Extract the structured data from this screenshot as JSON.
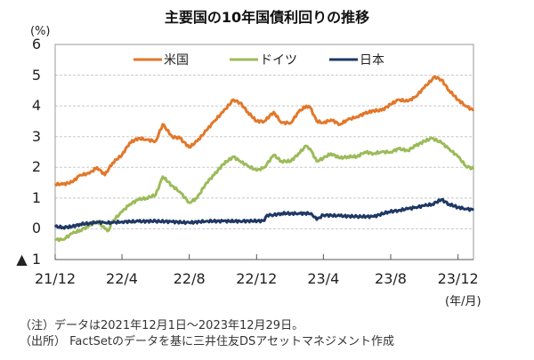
{
  "chart_data": {
    "type": "line",
    "title": "主要国の10年国債利回りの推移",
    "ylabel": "(%)",
    "xlabel": "(年/月)",
    "ylim": [
      -1,
      6
    ],
    "yticks": [
      6,
      5,
      4,
      3,
      2,
      1,
      0,
      -1
    ],
    "ytick_labels": [
      "6",
      "5",
      "4",
      "3",
      "2",
      "1",
      "0",
      "▲ 1"
    ],
    "xlim": [
      "2021-12-01",
      "2023-12-29"
    ],
    "xticks": [
      "2021-12-01",
      "2022-04-01",
      "2022-08-01",
      "2022-12-01",
      "2023-04-01",
      "2023-08-01",
      "2023-12-01"
    ],
    "xtick_labels": [
      "21/12",
      "22/4",
      "22/8",
      "22/12",
      "23/4",
      "23/8",
      "23/12"
    ],
    "grid": true,
    "legend_position": "top-center",
    "series": [
      {
        "name": "米国",
        "color": "#E2772A",
        "points": [
          [
            "2021-12-01",
            1.45
          ],
          [
            "2021-12-15",
            1.45
          ],
          [
            "2022-01-01",
            1.52
          ],
          [
            "2022-01-15",
            1.75
          ],
          [
            "2022-02-01",
            1.8
          ],
          [
            "2022-02-15",
            2.0
          ],
          [
            "2022-03-01",
            1.75
          ],
          [
            "2022-03-15",
            2.15
          ],
          [
            "2022-04-01",
            2.4
          ],
          [
            "2022-04-15",
            2.8
          ],
          [
            "2022-05-01",
            2.95
          ],
          [
            "2022-05-15",
            2.9
          ],
          [
            "2022-06-01",
            2.85
          ],
          [
            "2022-06-14",
            3.4
          ],
          [
            "2022-07-01",
            3.0
          ],
          [
            "2022-07-15",
            2.95
          ],
          [
            "2022-08-01",
            2.65
          ],
          [
            "2022-08-15",
            2.85
          ],
          [
            "2022-09-01",
            3.2
          ],
          [
            "2022-09-15",
            3.5
          ],
          [
            "2022-10-01",
            3.8
          ],
          [
            "2022-10-20",
            4.2
          ],
          [
            "2022-11-01",
            4.1
          ],
          [
            "2022-11-15",
            3.8
          ],
          [
            "2022-12-01",
            3.5
          ],
          [
            "2022-12-15",
            3.5
          ],
          [
            "2023-01-01",
            3.8
          ],
          [
            "2023-01-15",
            3.45
          ],
          [
            "2023-02-01",
            3.45
          ],
          [
            "2023-02-15",
            3.8
          ],
          [
            "2023-03-01",
            4.0
          ],
          [
            "2023-03-08",
            3.95
          ],
          [
            "2023-03-20",
            3.5
          ],
          [
            "2023-04-01",
            3.45
          ],
          [
            "2023-04-15",
            3.55
          ],
          [
            "2023-05-01",
            3.4
          ],
          [
            "2023-05-15",
            3.55
          ],
          [
            "2023-06-01",
            3.65
          ],
          [
            "2023-06-15",
            3.75
          ],
          [
            "2023-07-01",
            3.85
          ],
          [
            "2023-07-15",
            3.85
          ],
          [
            "2023-08-01",
            4.05
          ],
          [
            "2023-08-15",
            4.2
          ],
          [
            "2023-09-01",
            4.15
          ],
          [
            "2023-09-15",
            4.3
          ],
          [
            "2023-10-01",
            4.6
          ],
          [
            "2023-10-20",
            4.95
          ],
          [
            "2023-11-01",
            4.85
          ],
          [
            "2023-11-15",
            4.5
          ],
          [
            "2023-12-01",
            4.2
          ],
          [
            "2023-12-15",
            4.0
          ],
          [
            "2023-12-29",
            3.85
          ]
        ]
      },
      {
        "name": "ドイツ",
        "color": "#9BBB59",
        "points": [
          [
            "2021-12-01",
            -0.35
          ],
          [
            "2021-12-15",
            -0.35
          ],
          [
            "2022-01-01",
            -0.15
          ],
          [
            "2022-01-15",
            -0.05
          ],
          [
            "2022-02-01",
            0.1
          ],
          [
            "2022-02-15",
            0.25
          ],
          [
            "2022-03-01",
            0.0
          ],
          [
            "2022-03-08",
            -0.05
          ],
          [
            "2022-03-15",
            0.25
          ],
          [
            "2022-04-01",
            0.55
          ],
          [
            "2022-04-15",
            0.8
          ],
          [
            "2022-05-01",
            0.95
          ],
          [
            "2022-05-15",
            1.0
          ],
          [
            "2022-06-01",
            1.1
          ],
          [
            "2022-06-14",
            1.7
          ],
          [
            "2022-07-01",
            1.4
          ],
          [
            "2022-07-15",
            1.2
          ],
          [
            "2022-08-01",
            0.85
          ],
          [
            "2022-08-15",
            1.0
          ],
          [
            "2022-09-01",
            1.5
          ],
          [
            "2022-09-15",
            1.75
          ],
          [
            "2022-10-01",
            2.1
          ],
          [
            "2022-10-20",
            2.35
          ],
          [
            "2022-11-01",
            2.2
          ],
          [
            "2022-11-15",
            2.05
          ],
          [
            "2022-12-01",
            1.9
          ],
          [
            "2022-12-15",
            2.0
          ],
          [
            "2023-01-01",
            2.4
          ],
          [
            "2023-01-15",
            2.2
          ],
          [
            "2023-02-01",
            2.2
          ],
          [
            "2023-02-15",
            2.45
          ],
          [
            "2023-03-01",
            2.7
          ],
          [
            "2023-03-08",
            2.6
          ],
          [
            "2023-03-20",
            2.2
          ],
          [
            "2023-04-01",
            2.3
          ],
          [
            "2023-04-15",
            2.45
          ],
          [
            "2023-05-01",
            2.3
          ],
          [
            "2023-05-15",
            2.35
          ],
          [
            "2023-06-01",
            2.35
          ],
          [
            "2023-06-15",
            2.5
          ],
          [
            "2023-07-01",
            2.45
          ],
          [
            "2023-07-15",
            2.5
          ],
          [
            "2023-08-01",
            2.5
          ],
          [
            "2023-08-15",
            2.6
          ],
          [
            "2023-09-01",
            2.55
          ],
          [
            "2023-09-15",
            2.7
          ],
          [
            "2023-10-01",
            2.85
          ],
          [
            "2023-10-15",
            2.95
          ],
          [
            "2023-11-01",
            2.8
          ],
          [
            "2023-11-15",
            2.6
          ],
          [
            "2023-12-01",
            2.35
          ],
          [
            "2023-12-15",
            2.05
          ],
          [
            "2023-12-29",
            1.95
          ]
        ]
      },
      {
        "name": "日本",
        "color": "#1F3864",
        "points": [
          [
            "2021-12-01",
            0.07
          ],
          [
            "2021-12-15",
            0.05
          ],
          [
            "2022-01-01",
            0.07
          ],
          [
            "2022-01-15",
            0.15
          ],
          [
            "2022-02-01",
            0.18
          ],
          [
            "2022-02-15",
            0.22
          ],
          [
            "2022-03-01",
            0.2
          ],
          [
            "2022-03-15",
            0.2
          ],
          [
            "2022-04-01",
            0.23
          ],
          [
            "2022-05-01",
            0.24
          ],
          [
            "2022-06-01",
            0.25
          ],
          [
            "2022-07-01",
            0.23
          ],
          [
            "2022-08-01",
            0.2
          ],
          [
            "2022-09-01",
            0.25
          ],
          [
            "2022-10-01",
            0.25
          ],
          [
            "2022-11-01",
            0.25
          ],
          [
            "2022-12-15",
            0.26
          ],
          [
            "2022-12-20",
            0.45
          ],
          [
            "2023-01-01",
            0.45
          ],
          [
            "2023-01-15",
            0.5
          ],
          [
            "2023-02-01",
            0.5
          ],
          [
            "2023-02-15",
            0.5
          ],
          [
            "2023-03-10",
            0.5
          ],
          [
            "2023-03-20",
            0.3
          ],
          [
            "2023-04-01",
            0.45
          ],
          [
            "2023-05-01",
            0.42
          ],
          [
            "2023-06-01",
            0.4
          ],
          [
            "2023-07-01",
            0.4
          ],
          [
            "2023-07-28",
            0.55
          ],
          [
            "2023-08-15",
            0.6
          ],
          [
            "2023-09-01",
            0.65
          ],
          [
            "2023-09-15",
            0.7
          ],
          [
            "2023-10-01",
            0.75
          ],
          [
            "2023-10-15",
            0.8
          ],
          [
            "2023-11-01",
            0.95
          ],
          [
            "2023-11-15",
            0.8
          ],
          [
            "2023-12-01",
            0.7
          ],
          [
            "2023-12-15",
            0.65
          ],
          [
            "2023-12-29",
            0.62
          ]
        ]
      }
    ]
  },
  "notes": [
    "（注）データは2021年12月1日～2023年12月29日。",
    "（出所） FactSetのデータを基に三井住友DSアセットマネジメント作成"
  ]
}
